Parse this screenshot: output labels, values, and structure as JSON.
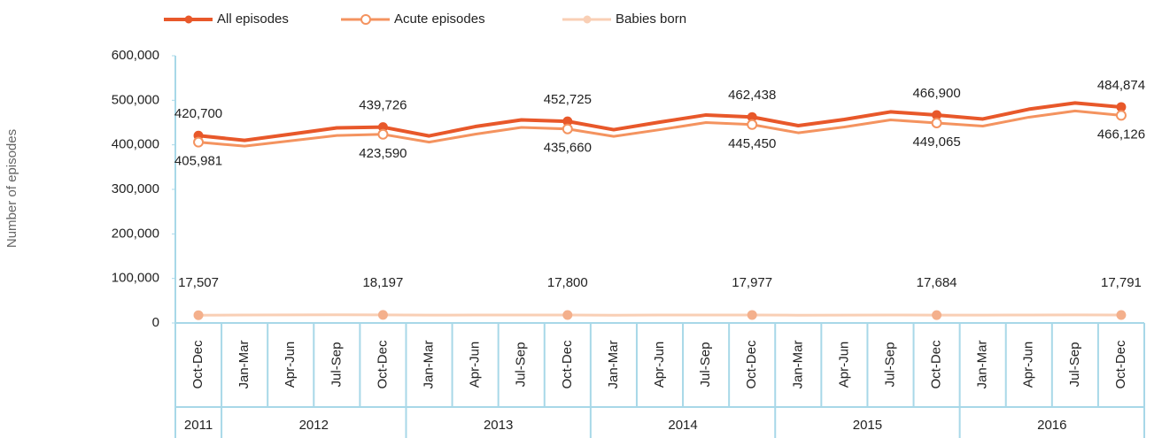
{
  "chart_data": {
    "type": "line",
    "y_label": "Number of episodes",
    "category_groups": [
      {
        "label": "2011",
        "categories": [
          "Oct-Dec"
        ]
      },
      {
        "label": "2012",
        "categories": [
          "Jan-Mar",
          "Apr-Jun",
          "Jul-Sep",
          "Oct-Dec"
        ]
      },
      {
        "label": "2013",
        "categories": [
          "Jan-Mar",
          "Apr-Jun",
          "Jul-Sep",
          "Oct-Dec"
        ]
      },
      {
        "label": "2014",
        "categories": [
          "Jan-Mar",
          "Apr-Jun",
          "Jul-Sep",
          "Oct-Dec"
        ]
      },
      {
        "label": "2015",
        "categories": [
          "Jan-Mar",
          "Apr-Jun",
          "Jul-Sep",
          "Oct-Dec"
        ]
      },
      {
        "label": "2016",
        "categories": [
          "Jan-Mar",
          "Apr-Jun",
          "Jul-Sep",
          "Oct-Dec"
        ]
      }
    ],
    "series": [
      {
        "name": "All episodes",
        "color": "#e8582a",
        "marker": "filled",
        "values": [
          420700,
          410000,
          424000,
          438000,
          439726,
          420000,
          441000,
          456000,
          452725,
          434000,
          451000,
          467000,
          462438,
          443000,
          457000,
          474000,
          466900,
          458000,
          480000,
          494000,
          484874
        ],
        "value_labels": [
          "420,700",
          null,
          null,
          null,
          "439,726",
          null,
          null,
          null,
          "452,725",
          null,
          null,
          null,
          "462,438",
          null,
          null,
          null,
          "466,900",
          null,
          null,
          null,
          "484,874"
        ]
      },
      {
        "name": "Acute episodes",
        "color": "#f4935f",
        "marker": "open",
        "values": [
          405981,
          397000,
          409000,
          421000,
          423590,
          406000,
          424000,
          439000,
          435660,
          419000,
          434000,
          450000,
          445450,
          427000,
          440000,
          456000,
          449065,
          442000,
          462000,
          476000,
          466126
        ],
        "value_labels": [
          "405,981",
          null,
          null,
          null,
          "423,590",
          null,
          null,
          null,
          "435,660",
          null,
          null,
          null,
          "445,450",
          null,
          null,
          null,
          "449,065",
          null,
          null,
          null,
          "466,126"
        ]
      },
      {
        "name": "Babies born",
        "color": "#f9cfb5",
        "marker": "filled",
        "values": [
          17507,
          17900,
          18100,
          18300,
          18197,
          17600,
          17900,
          18000,
          17800,
          17500,
          17800,
          18000,
          17977,
          17400,
          17600,
          17800,
          17684,
          17700,
          18000,
          18100,
          17791
        ],
        "value_labels": [
          "17,507",
          null,
          null,
          null,
          "18,197",
          null,
          null,
          null,
          "17,800",
          null,
          null,
          null,
          "17,977",
          null,
          null,
          null,
          "17,684",
          null,
          null,
          null,
          "17,791"
        ]
      }
    ],
    "ylim": [
      0,
      600000
    ],
    "yticks": [
      0,
      {
        "value": 100000,
        "label": "100,000"
      },
      {
        "value": 200000,
        "label": "200,000"
      },
      {
        "value": 300000,
        "label": "300,000"
      },
      {
        "value": 400000,
        "label": "400,000"
      },
      {
        "value": 500000,
        "label": "500,000"
      },
      {
        "value": 600000,
        "label": "600,000"
      }
    ],
    "legend": "top"
  }
}
